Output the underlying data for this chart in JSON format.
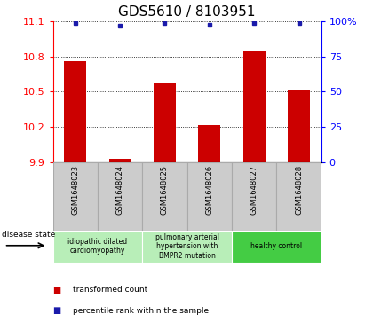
{
  "title": "GDS5610 / 8103951",
  "samples": [
    "GSM1648023",
    "GSM1648024",
    "GSM1648025",
    "GSM1648026",
    "GSM1648027",
    "GSM1648028"
  ],
  "bar_values": [
    10.76,
    9.93,
    10.57,
    10.22,
    10.84,
    10.52
  ],
  "percentile_values": [
    11.08,
    11.06,
    11.08,
    11.07,
    11.08,
    11.08
  ],
  "ylim_left": [
    9.9,
    11.1
  ],
  "ylim_right": [
    0,
    100
  ],
  "yticks_left": [
    9.9,
    10.2,
    10.5,
    10.8,
    11.1
  ],
  "yticks_right": [
    0,
    25,
    50,
    75,
    100
  ],
  "ytick_labels_right": [
    "0",
    "25",
    "50",
    "75",
    "100%"
  ],
  "bar_color": "#cc0000",
  "dot_color": "#1a1aaa",
  "grid_color": "#000000",
  "bg_color": "#ffffff",
  "group_info": [
    {
      "start": 0,
      "end": 1,
      "label": "idiopathic dilated\ncardiomyopathy",
      "color": "#b8eeb8"
    },
    {
      "start": 2,
      "end": 3,
      "label": "pulmonary arterial\nhypertension with\nBMPR2 mutation",
      "color": "#b8eeb8"
    },
    {
      "start": 4,
      "end": 5,
      "label": "healthy control",
      "color": "#44cc44"
    }
  ],
  "legend_items": [
    {
      "label": "transformed count",
      "color": "#cc0000"
    },
    {
      "label": "percentile rank within the sample",
      "color": "#1a1aaa"
    }
  ],
  "disease_state_label": "disease state",
  "title_fontsize": 11,
  "tick_fontsize": 8,
  "bar_width": 0.5,
  "sample_label_color": "#333333",
  "sample_box_color": "#cccccc",
  "sample_box_edge": "#aaaaaa"
}
